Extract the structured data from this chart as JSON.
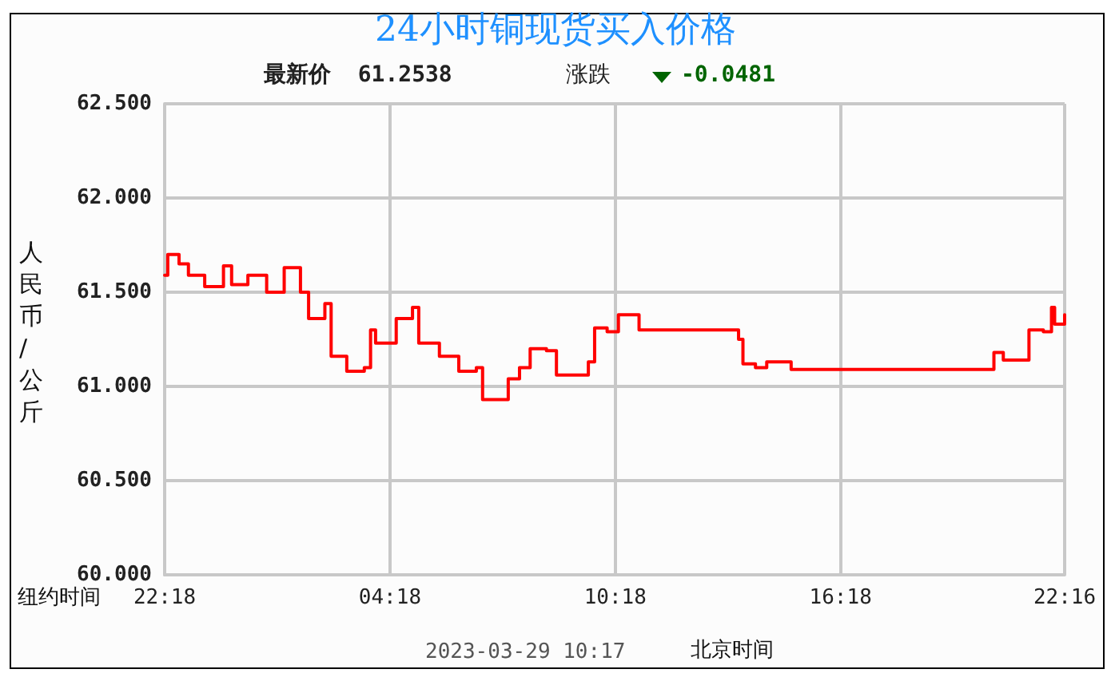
{
  "chart_data": {
    "type": "step",
    "title": "24小时铜现货买入价格",
    "subtitle": "最新价  61.2538",
    "ylabel": "人民币/公斤",
    "xlabel": "北京时间",
    "annotations": [
      "涨跌",
      "-0.0481",
      "纽约时间",
      "2023-03-29 10:17"
    ],
    "x": [
      "2023-03-27T22:18",
      "2023-03-27T22:23",
      "2023-03-27T22:41",
      "2023-03-27T22:56",
      "2023-03-27T23:22",
      "2023-03-27T23:52",
      "2023-03-28T00:05",
      "2023-03-28T00:31",
      "2023-03-28T01:01",
      "2023-03-28T01:29",
      "2023-03-28T01:55",
      "2023-03-28T02:08",
      "2023-03-28T02:34",
      "2023-03-28T02:44",
      "2023-03-28T03:09",
      "2023-03-28T03:37",
      "2023-03-28T03:47",
      "2023-03-28T03:55",
      "2023-03-28T04:28",
      "2023-03-28T04:54",
      "2023-03-28T05:04",
      "2023-03-28T05:37",
      "2023-03-28T06:08",
      "2023-03-28T06:36",
      "2023-03-28T06:46",
      "2023-03-28T07:19",
      "2023-03-28T07:27",
      "2023-03-28T07:45",
      "2023-03-28T08:02",
      "2023-03-28T08:28",
      "2023-03-28T08:44",
      "2023-03-28T09:19",
      "2023-03-28T09:35",
      "2023-03-28T09:45",
      "2023-03-28T10:05",
      "2023-03-28T10:23",
      "2023-03-28T10:56",
      "2023-03-28T11:47",
      "2023-03-28T12:38",
      "2023-03-28T13:17",
      "2023-03-28T13:35",
      "2023-03-28T13:42",
      "2023-03-28T14:02",
      "2023-03-28T14:20",
      "2023-03-28T14:54",
      "2023-03-28T14:59",
      "2023-03-28T20:13",
      "2023-03-28T20:23",
      "2023-03-28T20:38",
      "2023-03-28T21:17",
      "2023-03-28T21:19",
      "2023-03-28T21:42",
      "2023-03-28T21:55",
      "2023-03-28T22:00",
      "2023-03-28T22:16"
    ],
    "series": [
      {
        "color": "#ff0000",
        "values": [
          61.59,
          61.7,
          61.65,
          61.59,
          61.53,
          61.64,
          61.54,
          61.59,
          61.5,
          61.63,
          61.5,
          61.36,
          61.44,
          61.16,
          61.08,
          61.1,
          61.3,
          61.23,
          61.36,
          61.42,
          61.23,
          61.16,
          61.08,
          61.1,
          60.93,
          60.93,
          61.04,
          61.1,
          61.2,
          61.19,
          61.06,
          61.06,
          61.13,
          61.31,
          61.29,
          61.38,
          61.3,
          61.3,
          61.3,
          61.3,
          61.25,
          61.12,
          61.1,
          61.13,
          61.13,
          61.09,
          61.09,
          61.18,
          61.14,
          61.14,
          61.3,
          61.29,
          61.42,
          61.33,
          61.38
        ]
      }
    ],
    "xlim": [
      "2023-03-27T22:18",
      "2023-03-28T22:16"
    ],
    "xticks": [
      {
        "value": "2023-03-27T22:18",
        "label": "22:18"
      },
      {
        "value": "2023-03-28T04:18",
        "label": "04:18"
      },
      {
        "value": "2023-03-28T10:18",
        "label": "10:18"
      },
      {
        "value": "2023-03-28T16:18",
        "label": "16:18"
      },
      {
        "value": "2023-03-28T22:16",
        "label": "22:16"
      }
    ],
    "ylim": [
      60,
      62.5
    ],
    "yticks": [
      {
        "value": 60,
        "label": "60.000"
      },
      {
        "value": 60.5,
        "label": "60.500"
      },
      {
        "value": 61,
        "label": "61.000"
      },
      {
        "value": 61.5,
        "label": "61.500"
      },
      {
        "value": 62,
        "label": "62.000"
      },
      {
        "value": 62.5,
        "label": "62.500"
      }
    ],
    "grid": true,
    "marker": "none",
    "line_style": "solid"
  }
}
